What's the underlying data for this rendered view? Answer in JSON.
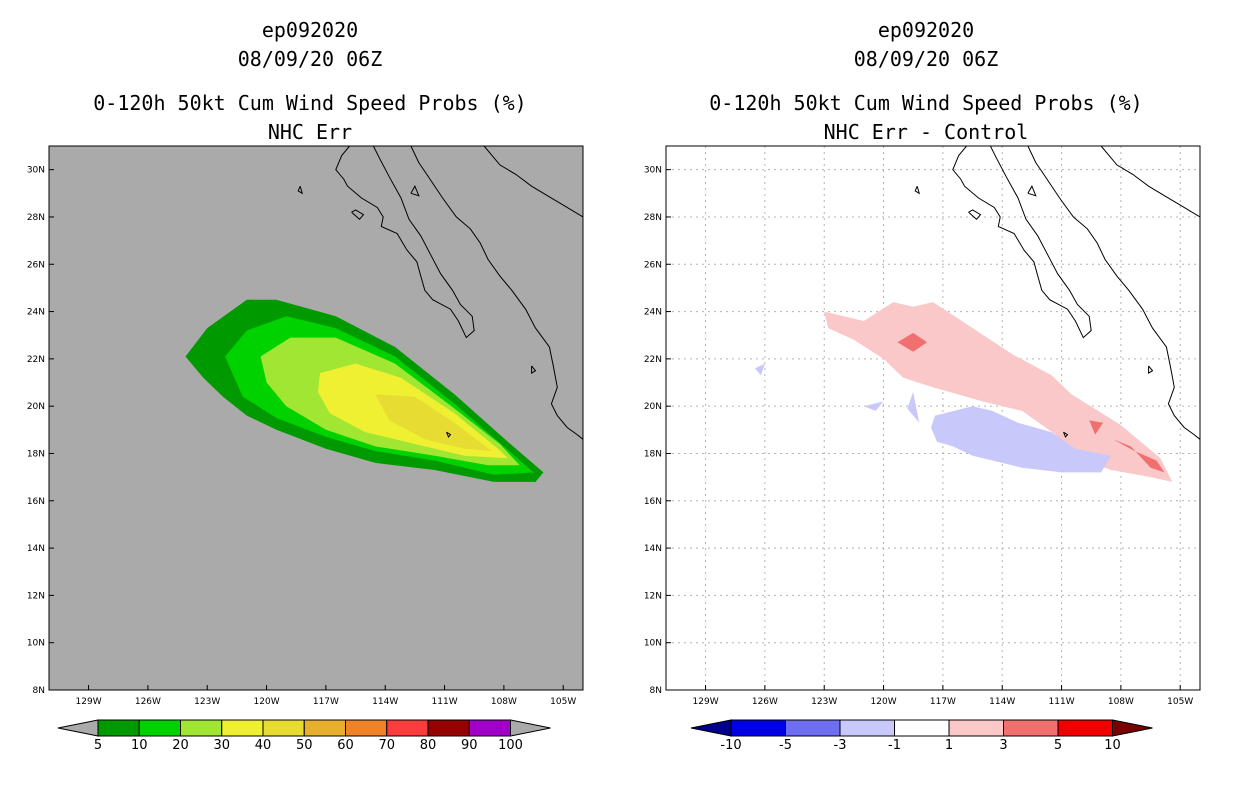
{
  "panels": [
    {
      "storm_id": "ep092020",
      "datetime": "08/09/20 06Z",
      "title": "0-120h 50kt Cum Wind Speed Probs (%)",
      "subtitle": "NHC Err",
      "background": "#aaaaaa"
    },
    {
      "storm_id": "ep092020",
      "datetime": "08/09/20 06Z",
      "title": "0-120h 50kt Cum Wind Speed Probs (%)",
      "subtitle": "NHC Err - Control",
      "background": "#ffffff"
    }
  ],
  "chart_data": [
    {
      "type": "contour-map",
      "title": "0-120h 50kt Cum Wind Speed Probs (%)",
      "subtitle": "NHC Err",
      "x_ticks": [
        "129W",
        "126W",
        "123W",
        "120W",
        "117W",
        "114W",
        "111W",
        "108W",
        "105W"
      ],
      "y_ticks": [
        "30N",
        "28N",
        "26N",
        "24N",
        "22N",
        "20N",
        "18N",
        "16N",
        "14N",
        "12N",
        "10N",
        "8N"
      ],
      "xlim": [
        -131,
        -104
      ],
      "ylim": [
        8,
        31
      ],
      "grid": false,
      "colorbar": {
        "labels": [
          "5",
          "10",
          "20",
          "30",
          "40",
          "50",
          "60",
          "70",
          "80",
          "90",
          "100"
        ],
        "colors": [
          "#009a00",
          "#00d200",
          "#a0e632",
          "#f0f032",
          "#e6dc32",
          "#e6af2d",
          "#f08228",
          "#fa3c3c",
          "#960000",
          "#a000c8"
        ],
        "under": "#aaaaaa",
        "over": "#aaaaaa"
      },
      "contours": [
        {
          "level": 5,
          "color": "#009a00",
          "points": [
            [
              -124.1,
              22.1
            ],
            [
              -123.0,
              23.3
            ],
            [
              -121.0,
              24.5
            ],
            [
              -119.5,
              24.5
            ],
            [
              -116.5,
              23.8
            ],
            [
              -113.5,
              22.5
            ],
            [
              -110.5,
              20.5
            ],
            [
              -107.8,
              18.5
            ],
            [
              -106.0,
              17.2
            ],
            [
              -106.4,
              16.8
            ],
            [
              -108.5,
              16.8
            ],
            [
              -111.5,
              17.3
            ],
            [
              -114.5,
              17.6
            ],
            [
              -117.0,
              18.2
            ],
            [
              -119.5,
              19.0
            ],
            [
              -121.0,
              19.6
            ],
            [
              -122.2,
              20.4
            ],
            [
              -123.2,
              21.2
            ]
          ]
        },
        {
          "level": 10,
          "color": "#00d200",
          "points": [
            [
              -122.1,
              22.1
            ],
            [
              -121.0,
              23.2
            ],
            [
              -119.0,
              23.8
            ],
            [
              -116.5,
              23.3
            ],
            [
              -113.5,
              22.1
            ],
            [
              -110.5,
              20.1
            ],
            [
              -108.0,
              18.3
            ],
            [
              -106.5,
              17.2
            ],
            [
              -108.5,
              17.1
            ],
            [
              -111.5,
              17.7
            ],
            [
              -114.5,
              18.1
            ],
            [
              -117.0,
              18.7
            ],
            [
              -119.5,
              19.5
            ],
            [
              -121.2,
              20.4
            ]
          ]
        },
        {
          "level": 20,
          "color": "#a0e632",
          "points": [
            [
              -120.3,
              22.1
            ],
            [
              -118.8,
              22.9
            ],
            [
              -116.5,
              22.9
            ],
            [
              -113.5,
              21.8
            ],
            [
              -110.5,
              19.9
            ],
            [
              -108.2,
              18.4
            ],
            [
              -107.2,
              17.5
            ],
            [
              -108.8,
              17.5
            ],
            [
              -111.5,
              17.9
            ],
            [
              -114.5,
              18.3
            ],
            [
              -117.0,
              19.0
            ],
            [
              -119.0,
              20.0
            ],
            [
              -120.0,
              21.0
            ]
          ]
        },
        {
          "level": 30,
          "color": "#f0f032",
          "points": [
            [
              -117.3,
              21.4
            ],
            [
              -115.5,
              21.8
            ],
            [
              -113.2,
              21.2
            ],
            [
              -110.5,
              19.7
            ],
            [
              -108.3,
              18.2
            ],
            [
              -107.8,
              17.8
            ],
            [
              -110.0,
              17.9
            ],
            [
              -112.5,
              18.4
            ],
            [
              -115.0,
              18.9
            ],
            [
              -116.8,
              19.7
            ],
            [
              -117.4,
              20.6
            ]
          ]
        },
        {
          "level": 40,
          "color": "#e6dc32",
          "points": [
            [
              -114.5,
              20.5
            ],
            [
              -112.5,
              20.4
            ],
            [
              -110.5,
              19.3
            ],
            [
              -108.6,
              18.1
            ],
            [
              -110.0,
              18.2
            ],
            [
              -112.0,
              18.6
            ],
            [
              -113.8,
              19.4
            ]
          ]
        }
      ]
    },
    {
      "type": "contour-map",
      "title": "0-120h 50kt Cum Wind Speed Probs (%)",
      "subtitle": "NHC Err - Control",
      "x_ticks": [
        "129W",
        "126W",
        "123W",
        "120W",
        "117W",
        "114W",
        "111W",
        "108W",
        "105W"
      ],
      "y_ticks": [
        "30N",
        "28N",
        "26N",
        "24N",
        "22N",
        "20N",
        "18N",
        "16N",
        "14N",
        "12N",
        "10N",
        "8N"
      ],
      "xlim": [
        -131,
        -104
      ],
      "ylim": [
        8,
        31
      ],
      "grid": true,
      "colorbar": {
        "labels": [
          "-10",
          "-5",
          "-3",
          "-1",
          "1",
          "3",
          "5",
          "10"
        ],
        "colors": [
          "#0000e6",
          "#6e6ef0",
          "#c8c8fa",
          "#ffffff",
          "#fac8c8",
          "#f07070",
          "#f00000"
        ],
        "under": "#00008c",
        "over": "#780000"
      },
      "contours": [
        {
          "level": 1,
          "color": "#fac8c8",
          "points": [
            [
              -123.0,
              24.0
            ],
            [
              -121.0,
              23.6
            ],
            [
              -119.5,
              24.4
            ],
            [
              -118.5,
              24.2
            ],
            [
              -117.5,
              24.4
            ],
            [
              -115.5,
              23.3
            ],
            [
              -113.5,
              22.2
            ],
            [
              -111.5,
              21.3
            ],
            [
              -110.5,
              20.5
            ],
            [
              -108.0,
              19.2
            ],
            [
              -106.0,
              17.8
            ],
            [
              -105.4,
              16.8
            ],
            [
              -106.5,
              17.0
            ],
            [
              -108.5,
              17.3
            ],
            [
              -110.5,
              17.9
            ],
            [
              -111.3,
              18.8
            ],
            [
              -113.0,
              19.8
            ],
            [
              -115.0,
              20.2
            ],
            [
              -117.5,
              20.8
            ],
            [
              -119.0,
              21.2
            ],
            [
              -120.0,
              22.0
            ],
            [
              -121.5,
              22.8
            ],
            [
              -122.8,
              23.3
            ]
          ]
        },
        {
          "level": 3,
          "color": "#f07070",
          "points": [
            [
              -119.3,
              22.7
            ],
            [
              -118.5,
              23.1
            ],
            [
              -117.8,
              22.7
            ],
            [
              -118.5,
              22.3
            ]
          ]
        },
        {
          "level": 3,
          "color": "#f07070",
          "points": [
            [
              -109.6,
              19.4
            ],
            [
              -108.9,
              19.3
            ],
            [
              -109.3,
              18.8
            ]
          ]
        },
        {
          "level": 3,
          "color": "#f07070",
          "points": [
            [
              -108.4,
              18.6
            ],
            [
              -107.5,
              18.3
            ],
            [
              -106.5,
              17.4
            ],
            [
              -105.8,
              17.2
            ],
            [
              -106.2,
              17.7
            ],
            [
              -107.3,
              18.1
            ]
          ]
        },
        {
          "level": -1,
          "color": "#c8c8fa",
          "points": [
            [
              -117.4,
              19.6
            ],
            [
              -115.5,
              20.0
            ],
            [
              -114.5,
              19.8
            ],
            [
              -113.2,
              19.3
            ],
            [
              -111.5,
              18.9
            ],
            [
              -110.3,
              18.2
            ],
            [
              -108.5,
              17.9
            ],
            [
              -109.0,
              17.2
            ],
            [
              -111.0,
              17.2
            ],
            [
              -113.0,
              17.4
            ],
            [
              -114.0,
              17.6
            ],
            [
              -115.5,
              17.9
            ],
            [
              -116.5,
              18.3
            ],
            [
              -117.3,
              18.5
            ],
            [
              -117.6,
              19.1
            ]
          ]
        },
        {
          "level": -1,
          "color": "#c8c8fa",
          "points": [
            [
              -121.0,
              20.0
            ],
            [
              -120.0,
              20.2
            ],
            [
              -120.4,
              19.8
            ]
          ]
        },
        {
          "level": -1,
          "color": "#c8c8fa",
          "points": [
            [
              -118.8,
              19.9
            ],
            [
              -118.5,
              20.6
            ],
            [
              -118.2,
              19.3
            ]
          ]
        },
        {
          "level": -1,
          "color": "#c8c8fa",
          "points": [
            [
              -126.5,
              21.6
            ],
            [
              -126.0,
              21.8
            ],
            [
              -126.2,
              21.3
            ]
          ]
        }
      ]
    }
  ]
}
